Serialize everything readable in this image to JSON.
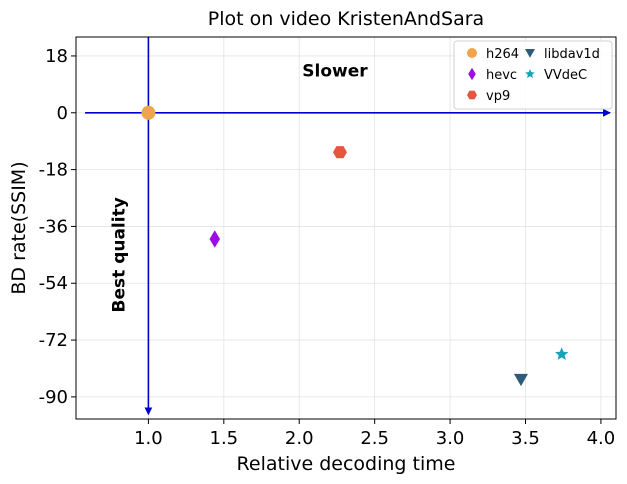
{
  "chart_data": {
    "type": "scatter",
    "title": "Plot on video KristenAndSara",
    "xlabel": "Relative decoding time",
    "ylabel": "BD rate(SSIM)",
    "xlim": [
      0.52,
      4.1
    ],
    "ylim": [
      -97,
      24
    ],
    "xticks": [
      1.0,
      1.5,
      2.0,
      2.5,
      3.0,
      3.5,
      4.0
    ],
    "xtick_labels": [
      "1.0",
      "1.5",
      "2.0",
      "2.5",
      "3.0",
      "3.5",
      "4.0"
    ],
    "yticks": [
      18,
      0,
      -18,
      -36,
      -54,
      -72,
      -90
    ],
    "ytick_labels": [
      "18",
      "0",
      "-18",
      "-36",
      "-54",
      "-72",
      "-90"
    ],
    "grid": true,
    "legend_position": "top-right",
    "series": [
      {
        "name": "h264",
        "marker": "circle",
        "color": "#f0a44b",
        "x": 1.0,
        "y": 0.0
      },
      {
        "name": "hevc",
        "marker": "thin-diamond",
        "color": "#9b0fe6",
        "x": 1.44,
        "y": -40.0
      },
      {
        "name": "vp9",
        "marker": "hexagon",
        "color": "#e4573f",
        "x": 2.27,
        "y": -12.5
      },
      {
        "name": "libdav1d",
        "marker": "triangle-down",
        "color": "#2e5b78",
        "x": 3.47,
        "y": -84.5
      },
      {
        "name": "VVdeC",
        "marker": "star",
        "color": "#17a3b8",
        "x": 3.74,
        "y": -76.5
      }
    ],
    "annotations": [
      {
        "text": "Slower",
        "x": 2.02,
        "y": 11.5,
        "rotation": 0
      },
      {
        "text": "Best quality",
        "x": 0.86,
        "y": -45.0,
        "rotation": -90
      }
    ],
    "arrows": [
      {
        "from": [
          0.58,
          0
        ],
        "to": [
          4.06,
          0
        ],
        "color": "#0000cc"
      },
      {
        "from": [
          1.0,
          24
        ],
        "to": [
          1.0,
          -95.5
        ],
        "color": "#0000cc"
      }
    ]
  }
}
